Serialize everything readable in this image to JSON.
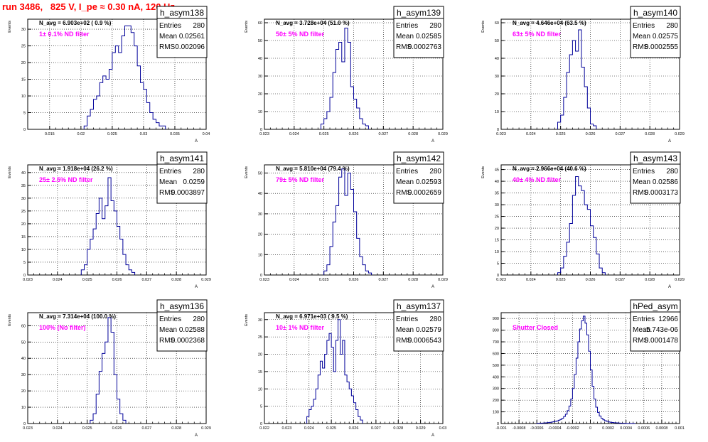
{
  "page": {
    "run_title": "run 3486,   825 V, I_pe ≈ 0.30 nA, 120 Hz"
  },
  "colors": {
    "histogram_line": "#000099",
    "filter_label": "#ff00ff",
    "title": "#ff0000",
    "axis": "#000000",
    "grid": "#000000"
  },
  "chart_data": [
    {
      "type": "histogram",
      "name": "h_asym138",
      "annotation": "N_avg = 6.903e+02 ( 0.9 %)",
      "filter_label": "1± 0.1% ND filter",
      "ylabel": "Events",
      "xlabel": "A",
      "stats": {
        "entries_label": "Entries",
        "entries": "280",
        "mean_label": "Mean",
        "mean": "0.02561",
        "rms_label": "RMS",
        "rms": "0.002096"
      },
      "xlim": [
        0.0115,
        0.04
      ],
      "ylim": [
        0,
        33
      ],
      "xticks": [
        0.015,
        0.02,
        0.025,
        0.03,
        0.035,
        0.04
      ],
      "xtick_labels": [
        "0.015",
        "0.02",
        "0.025",
        "0.03",
        "0.035",
        "0.04"
      ],
      "yticks": [
        0,
        5,
        10,
        15,
        20,
        25,
        30
      ],
      "ytick_labels": [
        "0",
        "5",
        "10",
        "15",
        "20",
        "25",
        "30"
      ],
      "bins": {
        "start": 0.0205,
        "width": 0.0005,
        "counts": [
          1,
          4,
          6,
          9,
          10,
          14,
          16,
          15,
          18,
          23,
          25,
          23,
          28,
          31,
          31,
          29,
          25,
          19,
          14,
          12,
          8,
          5,
          3,
          2,
          1,
          1
        ]
      }
    },
    {
      "type": "histogram",
      "name": "h_asym139",
      "annotation": "N_avg = 3.728e+04 (51.0 %)",
      "filter_label": "50± 5% ND filter",
      "ylabel": "Events",
      "xlabel": "A",
      "stats": {
        "entries_label": "Entries",
        "entries": "280",
        "mean_label": "Mean",
        "mean": "0.02585",
        "rms_label": "RMS",
        "rms": "0.0002763"
      },
      "xlim": [
        0.023,
        0.029
      ],
      "ylim": [
        0,
        62
      ],
      "xticks": [
        0.023,
        0.024,
        0.025,
        0.026,
        0.027,
        0.028,
        0.029
      ],
      "xtick_labels": [
        "0.023",
        "0.024",
        "0.025",
        "0.026",
        "0.027",
        "0.028",
        "0.029"
      ],
      "yticks": [
        0,
        10,
        20,
        30,
        40,
        50,
        60
      ],
      "ytick_labels": [
        "0",
        "10",
        "20",
        "30",
        "40",
        "50",
        "60"
      ],
      "bins": {
        "start": 0.0249,
        "width": 0.0001,
        "counts": [
          3,
          6,
          10,
          18,
          32,
          45,
          49,
          38,
          57,
          49,
          24,
          17,
          12,
          6,
          3,
          2
        ]
      }
    },
    {
      "type": "histogram",
      "name": "h_asym140",
      "annotation": "N_avg = 4.646e+04 (63.5 %)",
      "filter_label": "63± 5% ND filter",
      "ylabel": "Events",
      "xlabel": "A",
      "stats": {
        "entries_label": "Entries",
        "entries": "280",
        "mean_label": "Mean",
        "mean": "0.02575",
        "rms_label": "RMS",
        "rms": "0.0002555"
      },
      "xlim": [
        0.023,
        0.029
      ],
      "ylim": [
        0,
        62
      ],
      "xticks": [
        0.023,
        0.024,
        0.025,
        0.026,
        0.027,
        0.028,
        0.029
      ],
      "xtick_labels": [
        "0.023",
        "0.024",
        "0.025",
        "0.026",
        "0.027",
        "0.028",
        "0.029"
      ],
      "yticks": [
        0,
        10,
        20,
        30,
        40,
        50,
        60
      ],
      "ytick_labels": [
        "0",
        "10",
        "20",
        "30",
        "40",
        "50",
        "60"
      ],
      "bins": {
        "start": 0.0249,
        "width": 0.0001,
        "counts": [
          4,
          8,
          18,
          32,
          42,
          50,
          44,
          56,
          35,
          24,
          12,
          3,
          2
        ]
      }
    },
    {
      "type": "histogram",
      "name": "h_asym141",
      "annotation": "N_avg = 1.918e+04 (26.2 %)",
      "filter_label": "25± 2.5% ND filter",
      "ylabel": "Events",
      "xlabel": "A",
      "stats": {
        "entries_label": "Entries",
        "entries": "280",
        "mean_label": "Mean",
        "mean": "0.0259",
        "rms_label": "RMS",
        "rms": "0.0003897"
      },
      "xlim": [
        0.023,
        0.029
      ],
      "ylim": [
        0,
        43
      ],
      "xticks": [
        0.023,
        0.024,
        0.025,
        0.026,
        0.027,
        0.028,
        0.029
      ],
      "xtick_labels": [
        "0.023",
        "0.024",
        "0.025",
        "0.026",
        "0.027",
        "0.028",
        "0.029"
      ],
      "yticks": [
        0,
        5,
        10,
        15,
        20,
        25,
        30,
        35,
        40
      ],
      "ytick_labels": [
        "0",
        "5",
        "10",
        "15",
        "20",
        "25",
        "30",
        "35",
        "40"
      ],
      "bins": {
        "start": 0.0248,
        "width": 0.0001,
        "counts": [
          2,
          4,
          10,
          14,
          18,
          24,
          30,
          22,
          27,
          38,
          29,
          25,
          19,
          14,
          8,
          4,
          2,
          1
        ]
      }
    },
    {
      "type": "histogram",
      "name": "h_asym142",
      "annotation": "N_avg = 5.810e+04 (79.4 %)",
      "filter_label": "79± 5% ND filter",
      "ylabel": "Events",
      "xlabel": "A",
      "stats": {
        "entries_label": "Entries",
        "entries": "280",
        "mean_label": "Mean",
        "mean": "0.02593",
        "rms_label": "RMS",
        "rms": "0.0002659"
      },
      "xlim": [
        0.023,
        0.029
      ],
      "ylim": [
        0,
        54
      ],
      "xticks": [
        0.023,
        0.024,
        0.025,
        0.026,
        0.027,
        0.028,
        0.029
      ],
      "xtick_labels": [
        "0.023",
        "0.024",
        "0.025",
        "0.026",
        "0.027",
        "0.028",
        "0.029"
      ],
      "yticks": [
        0,
        10,
        20,
        30,
        40,
        50
      ],
      "ytick_labels": [
        "0",
        "10",
        "20",
        "30",
        "40",
        "50"
      ],
      "bins": {
        "start": 0.025,
        "width": 0.0001,
        "counts": [
          2,
          5,
          14,
          26,
          34,
          48,
          52,
          39,
          50,
          42,
          31,
          18,
          9,
          5,
          2,
          1
        ]
      }
    },
    {
      "type": "histogram",
      "name": "h_asym143",
      "annotation": "N_avg = 2.966e+04 (40.6 %)",
      "filter_label": "40± 4% ND filter",
      "ylabel": "Events",
      "xlabel": "A",
      "stats": {
        "entries_label": "Entries",
        "entries": "280",
        "mean_label": "Mean",
        "mean": "0.02586",
        "rms_label": "RMS",
        "rms": "0.0003173"
      },
      "xlim": [
        0.023,
        0.029
      ],
      "ylim": [
        0,
        47
      ],
      "xticks": [
        0.023,
        0.024,
        0.025,
        0.026,
        0.027,
        0.028,
        0.029
      ],
      "xtick_labels": [
        "0.023",
        "0.024",
        "0.025",
        "0.026",
        "0.027",
        "0.028",
        "0.029"
      ],
      "yticks": [
        0,
        5,
        10,
        15,
        20,
        25,
        30,
        35,
        40,
        45
      ],
      "ytick_labels": [
        "0",
        "5",
        "10",
        "15",
        "20",
        "25",
        "30",
        "35",
        "40",
        "45"
      ],
      "bins": {
        "start": 0.0249,
        "width": 0.0001,
        "counts": [
          1,
          3,
          8,
          14,
          22,
          34,
          42,
          38,
          36,
          30,
          28,
          21,
          16,
          9,
          3,
          1
        ]
      }
    },
    {
      "type": "histogram",
      "name": "h_asym136",
      "annotation": "N_avg = 7.314e+04 (100.0 %)",
      "filter_label": "100% (No filter)",
      "ylabel": "Events",
      "xlabel": "A",
      "stats": {
        "entries_label": "Entries",
        "entries": "280",
        "mean_label": "Mean",
        "mean": "0.02588",
        "rms_label": "RMS",
        "rms": "0.0002368"
      },
      "xlim": [
        0.023,
        0.029
      ],
      "ylim": [
        0,
        68
      ],
      "xticks": [
        0.023,
        0.024,
        0.025,
        0.026,
        0.027,
        0.028,
        0.029
      ],
      "xtick_labels": [
        "0.023",
        "0.024",
        "0.025",
        "0.026",
        "0.027",
        "0.028",
        "0.029"
      ],
      "yticks": [
        0,
        10,
        20,
        30,
        40,
        50,
        60
      ],
      "ytick_labels": [
        "0",
        "10",
        "20",
        "30",
        "40",
        "50",
        "60"
      ],
      "bins": {
        "start": 0.0251,
        "width": 0.0001,
        "counts": [
          2,
          6,
          18,
          32,
          43,
          50,
          65,
          56,
          30,
          15,
          6,
          2
        ]
      }
    },
    {
      "type": "histogram",
      "name": "h_asym137",
      "annotation": "N_avg = 6.971e+03 ( 9.5 %)",
      "filter_label": "10± 1% ND filter",
      "ylabel": "Events",
      "xlabel": "A",
      "stats": {
        "entries_label": "Entries",
        "entries": "280",
        "mean_label": "Mean",
        "mean": "0.02579",
        "rms_label": "RMS",
        "rms": "0.0006543"
      },
      "xlim": [
        0.022,
        0.03
      ],
      "ylim": [
        0,
        32
      ],
      "xticks": [
        0.022,
        0.023,
        0.024,
        0.025,
        0.026,
        0.027,
        0.028,
        0.029,
        0.03
      ],
      "xtick_labels": [
        "0.022",
        "0.023",
        "0.024",
        "0.025",
        "0.026",
        "0.027",
        "0.028",
        "0.029",
        "0.03"
      ],
      "yticks": [
        0,
        5,
        10,
        15,
        20,
        25,
        30
      ],
      "ytick_labels": [
        "0",
        "5",
        "10",
        "15",
        "20",
        "25",
        "30"
      ],
      "bins": {
        "start": 0.0239,
        "width": 0.0001,
        "counts": [
          2,
          4,
          5,
          7,
          10,
          14,
          18,
          16,
          20,
          24,
          26,
          22,
          15,
          24,
          30,
          20,
          24,
          14,
          12,
          10,
          8,
          6,
          4,
          2,
          1
        ]
      }
    },
    {
      "type": "histogram",
      "name": "hPed_asym",
      "annotation": "",
      "filter_label": "Shutter Closed",
      "ylabel": "",
      "xlabel": "",
      "stats": {
        "entries_label": "Entries",
        "entries": "12966",
        "mean_label": "Mean",
        "mean": "-5.743e-06",
        "rms_label": "RMS",
        "rms": "0.0001478"
      },
      "xlim": [
        -0.001,
        0.001
      ],
      "ylim": [
        0,
        950
      ],
      "xticks": [
        -0.001,
        -0.0008,
        -0.0006,
        -0.0004,
        -0.0002,
        0,
        0.0002,
        0.0004,
        0.0006,
        0.0008,
        0.001
      ],
      "xtick_labels": [
        "-0.001",
        "-0.0008",
        "-0.0006",
        "-0.0004",
        "-0.0002",
        "0",
        "0.0002",
        "0.0004",
        "0.0006",
        "0.0008",
        "0.001"
      ],
      "yticks": [
        0,
        100,
        200,
        300,
        400,
        500,
        600,
        700,
        800,
        900
      ],
      "ytick_labels": [
        "0",
        "100",
        "200",
        "300",
        "400",
        "500",
        "600",
        "700",
        "800",
        "900"
      ],
      "bins": {
        "start": -0.0006,
        "width": 2e-05,
        "counts": [
          2,
          2,
          3,
          4,
          5,
          6,
          8,
          10,
          12,
          15,
          18,
          22,
          28,
          35,
          45,
          60,
          80,
          110,
          150,
          210,
          300,
          420,
          560,
          700,
          810,
          880,
          920,
          860,
          760,
          620,
          460,
          320,
          210,
          140,
          95,
          65,
          45,
          32,
          24,
          18,
          14,
          11,
          9,
          7,
          6,
          5,
          4,
          3,
          2,
          2,
          1,
          1,
          1,
          1,
          1
        ]
      }
    }
  ]
}
